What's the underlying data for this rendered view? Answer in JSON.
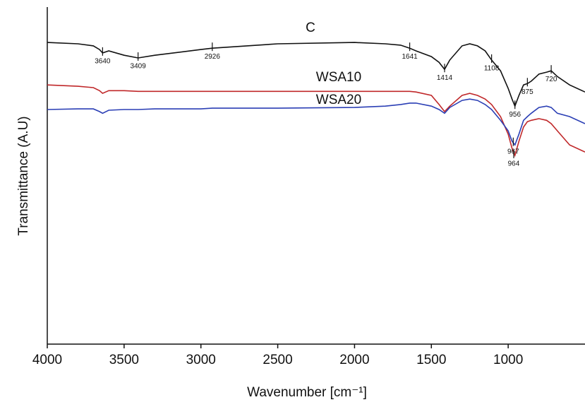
{
  "chart_data": {
    "type": "line",
    "xlabel": "Wavenumber [cm⁻¹]",
    "ylabel": "Transmittance (A.U)",
    "xlim": [
      4000,
      500
    ],
    "xticks": [
      4000,
      3500,
      3000,
      2500,
      2000,
      1500,
      1000
    ],
    "ylim": [
      0,
      100
    ],
    "x": [
      4000,
      3800,
      3700,
      3660,
      3640,
      3600,
      3500,
      3409,
      3300,
      3000,
      2926,
      2500,
      2000,
      1800,
      1700,
      1641,
      1600,
      1500,
      1450,
      1414,
      1380,
      1300,
      1250,
      1200,
      1150,
      1108,
      1050,
      1000,
      975,
      956,
      930,
      900,
      875,
      850,
      800,
      750,
      720,
      680,
      600,
      500
    ],
    "series": [
      {
        "name": "C",
        "color": "#111111",
        "values": [
          89.5,
          89.1,
          88.5,
          87.4,
          86.4,
          87.0,
          85.7,
          84.9,
          85.7,
          87.4,
          87.8,
          89.1,
          89.5,
          89.1,
          88.7,
          87.8,
          87.0,
          85.3,
          83.6,
          81.5,
          84.3,
          88.5,
          89.1,
          88.5,
          87.0,
          84.3,
          81.1,
          75.9,
          72.7,
          70.6,
          73.8,
          76.9,
          77.3,
          78.0,
          80.1,
          80.7,
          81.1,
          79.4,
          76.9,
          74.8
        ]
      },
      {
        "name": "WSA10",
        "color": "#c0282a",
        "values": [
          76.9,
          76.5,
          76.1,
          75.2,
          74.4,
          75.2,
          75.2,
          75.0,
          75.0,
          75.0,
          75.0,
          75.0,
          75.0,
          75.0,
          75.0,
          75.0,
          74.8,
          73.8,
          71.1,
          69.0,
          70.6,
          73.8,
          74.4,
          73.8,
          72.7,
          71.1,
          67.5,
          62.3,
          58.1,
          56.0,
          60.2,
          64.4,
          66.0,
          66.4,
          66.9,
          66.4,
          65.4,
          63.3,
          59.1,
          57.0
        ]
      },
      {
        "name": "WSA20",
        "color": "#2b3fb5",
        "values": [
          69.6,
          69.8,
          69.8,
          69.0,
          68.5,
          69.4,
          69.6,
          69.6,
          69.8,
          69.8,
          70.0,
          70.0,
          70.2,
          70.6,
          71.1,
          71.5,
          71.5,
          70.6,
          69.6,
          68.5,
          70.2,
          72.3,
          72.7,
          72.3,
          71.1,
          69.6,
          66.4,
          63.3,
          60.2,
          59.1,
          62.3,
          66.4,
          67.5,
          68.5,
          70.2,
          70.6,
          70.2,
          68.5,
          67.5,
          65.4
        ]
      }
    ],
    "annotations": [
      {
        "text": "3640",
        "x": 3640,
        "y": 86.4
      },
      {
        "text": "3409",
        "x": 3409,
        "y": 84.9
      },
      {
        "text": "2926",
        "x": 2926,
        "y": 87.8
      },
      {
        "text": "1641",
        "x": 1641,
        "y": 87.8
      },
      {
        "text": "1414",
        "x": 1414,
        "y": 81.5
      },
      {
        "text": "1108",
        "x": 1108,
        "y": 84.3
      },
      {
        "text": "956",
        "x": 956,
        "y": 70.6
      },
      {
        "text": "875",
        "x": 875,
        "y": 77.3
      },
      {
        "text": "720",
        "x": 720,
        "y": 81.1
      },
      {
        "text": "967",
        "x": 967,
        "y": 59.6
      },
      {
        "text": "964",
        "x": 964,
        "y": 56.0
      }
    ]
  }
}
